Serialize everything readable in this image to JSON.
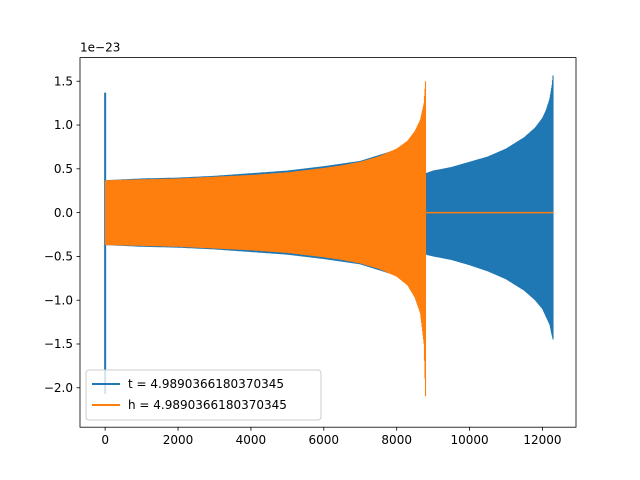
{
  "chart_data": {
    "type": "line",
    "title": "",
    "xlabel": "",
    "ylabel": "",
    "y_offset_label": "1e−23",
    "xlim": [
      -690,
      12920
    ],
    "ylim": [
      -2.45,
      1.77
    ],
    "xticks": [
      0,
      2000,
      4000,
      6000,
      8000,
      10000,
      12000
    ],
    "yticks": [
      -2.0,
      -1.5,
      -1.0,
      -0.5,
      0.0,
      0.5,
      1.0,
      1.5
    ],
    "ytick_labels": [
      "−2.0",
      "−1.5",
      "−1.0",
      "−0.5",
      "0.0",
      "0.5",
      "1.0",
      "1.5"
    ],
    "grid": false,
    "legend_position": "lower-left",
    "series": [
      {
        "name": "t = 4.9890366180370345",
        "color": "#1f77b4",
        "envelope_x": [
          0,
          1000,
          2000,
          3000,
          4000,
          5000,
          6000,
          7000,
          8000,
          8500,
          8800,
          9000,
          9500,
          10000,
          10500,
          11000,
          11500,
          11800,
          12000,
          12100,
          12200,
          12260,
          12290
        ],
        "envelope_upper": [
          0.37,
          0.39,
          0.4,
          0.42,
          0.45,
          0.48,
          0.53,
          0.59,
          0.72,
          0.83,
          0.45,
          0.48,
          0.52,
          0.58,
          0.64,
          0.73,
          0.86,
          0.97,
          1.08,
          1.17,
          1.3,
          1.45,
          1.57
        ],
        "envelope_lower": [
          -0.37,
          -0.39,
          -0.4,
          -0.42,
          -0.45,
          -0.48,
          -0.53,
          -0.59,
          -0.72,
          -0.83,
          -0.48,
          -0.5,
          -0.54,
          -0.6,
          -0.67,
          -0.76,
          -0.89,
          -1.0,
          -1.1,
          -1.19,
          -1.28,
          -1.4,
          -1.45
        ],
        "spike_x": [
          0
        ],
        "spike_upper": [
          1.37
        ],
        "spike_lower": [
          -2.07
        ]
      },
      {
        "name": "h = 4.9890366180370345",
        "color": "#ff7f0e",
        "envelope_x": [
          0,
          1000,
          2000,
          3000,
          4000,
          5000,
          6000,
          6500,
          7000,
          7500,
          8000,
          8300,
          8500,
          8650,
          8750,
          8800
        ],
        "envelope_upper": [
          0.37,
          0.38,
          0.39,
          0.41,
          0.43,
          0.46,
          0.51,
          0.54,
          0.58,
          0.64,
          0.73,
          0.82,
          0.93,
          1.06,
          1.25,
          1.56
        ],
        "envelope_lower": [
          -0.37,
          -0.38,
          -0.39,
          -0.41,
          -0.43,
          -0.46,
          -0.51,
          -0.54,
          -0.58,
          -0.64,
          -0.73,
          -0.83,
          -0.97,
          -1.15,
          -1.5,
          -2.24
        ],
        "flat_x": [
          8800,
          12290
        ],
        "flat_y": [
          0.0,
          0.0
        ]
      }
    ]
  }
}
